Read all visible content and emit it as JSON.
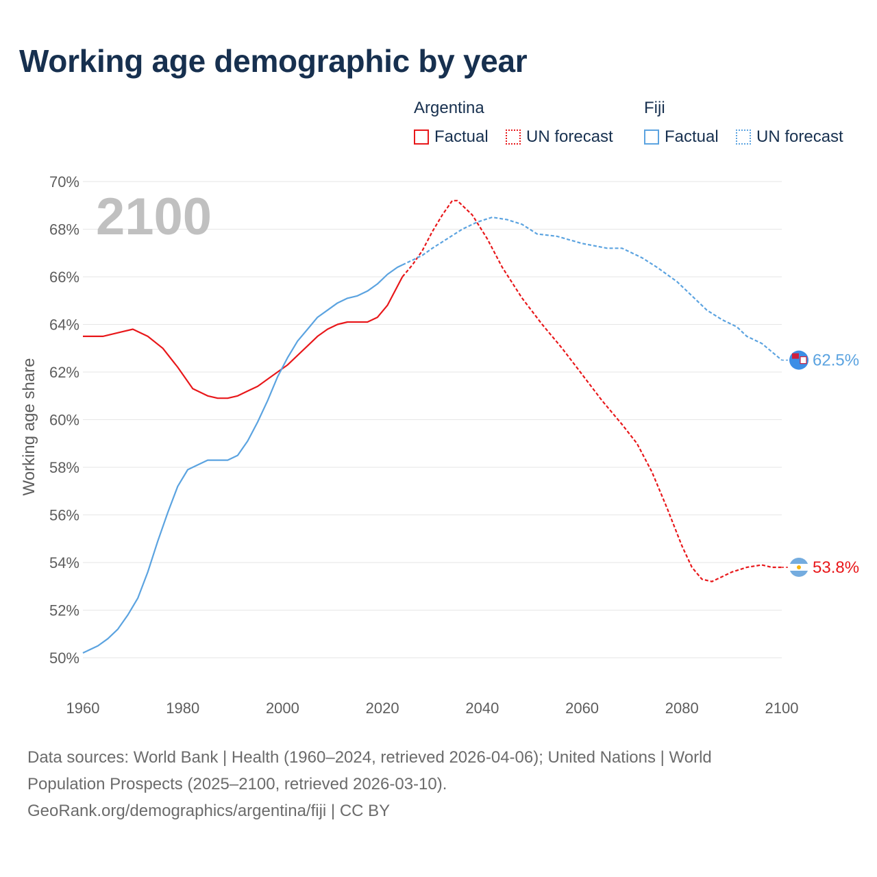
{
  "title": "Working age demographic by year",
  "legend": {
    "groups": [
      {
        "name": "Argentina",
        "color": "#e8171a",
        "factual_label": "Factual",
        "forecast_label": "UN forecast"
      },
      {
        "name": "Fiji",
        "color": "#5ba3e0",
        "factual_label": "Factual",
        "forecast_label": "UN forecast"
      }
    ]
  },
  "year_overlay": "2100",
  "chart_data": {
    "type": "line",
    "ylabel": "Working age share",
    "xlabel": "",
    "xlim": [
      1960,
      2100
    ],
    "ylim": [
      50,
      70
    ],
    "x_ticks": [
      1960,
      1980,
      2000,
      2020,
      2040,
      2060,
      2080,
      2100
    ],
    "x_tick_labels": [
      "1960",
      "1980",
      "2000",
      "2020",
      "2040",
      "2060",
      "2080",
      "2100"
    ],
    "y_ticks": [
      50,
      52,
      54,
      56,
      58,
      60,
      62,
      64,
      66,
      68,
      70
    ],
    "y_tick_labels": [
      "50%",
      "52%",
      "54%",
      "56%",
      "58%",
      "60%",
      "62%",
      "64%",
      "66%",
      "68%",
      "70%"
    ],
    "grid": true,
    "forecast_start": 2024,
    "series": [
      {
        "name": "Argentina",
        "color": "#e8171a",
        "end_label": "53.8%",
        "points": [
          [
            1960,
            63.5
          ],
          [
            1964,
            63.5
          ],
          [
            1966,
            63.6
          ],
          [
            1968,
            63.7
          ],
          [
            1970,
            63.8
          ],
          [
            1973,
            63.5
          ],
          [
            1976,
            63.0
          ],
          [
            1979,
            62.2
          ],
          [
            1982,
            61.3
          ],
          [
            1985,
            61.0
          ],
          [
            1987,
            60.9
          ],
          [
            1989,
            60.9
          ],
          [
            1991,
            61.0
          ],
          [
            1993,
            61.2
          ],
          [
            1995,
            61.4
          ],
          [
            1997,
            61.7
          ],
          [
            1999,
            62.0
          ],
          [
            2001,
            62.3
          ],
          [
            2003,
            62.7
          ],
          [
            2005,
            63.1
          ],
          [
            2007,
            63.5
          ],
          [
            2009,
            63.8
          ],
          [
            2011,
            64.0
          ],
          [
            2013,
            64.1
          ],
          [
            2017,
            64.1
          ],
          [
            2019,
            64.3
          ],
          [
            2021,
            64.8
          ],
          [
            2024,
            66.0
          ],
          [
            2026,
            66.5
          ],
          [
            2028,
            67.1
          ],
          [
            2030,
            67.9
          ],
          [
            2032,
            68.6
          ],
          [
            2034,
            69.2
          ],
          [
            2035,
            69.2
          ],
          [
            2038,
            68.6
          ],
          [
            2041,
            67.6
          ],
          [
            2044,
            66.4
          ],
          [
            2048,
            65.1
          ],
          [
            2052,
            64.0
          ],
          [
            2056,
            63.0
          ],
          [
            2060,
            61.9
          ],
          [
            2064,
            60.8
          ],
          [
            2068,
            59.8
          ],
          [
            2071,
            59.0
          ],
          [
            2074,
            57.8
          ],
          [
            2077,
            56.3
          ],
          [
            2080,
            54.7
          ],
          [
            2082,
            53.8
          ],
          [
            2084,
            53.3
          ],
          [
            2086,
            53.2
          ],
          [
            2088,
            53.4
          ],
          [
            2090,
            53.6
          ],
          [
            2093,
            53.8
          ],
          [
            2096,
            53.9
          ],
          [
            2098,
            53.8
          ],
          [
            2100,
            53.8
          ]
        ]
      },
      {
        "name": "Fiji",
        "color": "#5ba3e0",
        "end_label": "62.5%",
        "points": [
          [
            1960,
            50.2
          ],
          [
            1963,
            50.5
          ],
          [
            1965,
            50.8
          ],
          [
            1967,
            51.2
          ],
          [
            1969,
            51.8
          ],
          [
            1971,
            52.5
          ],
          [
            1973,
            53.6
          ],
          [
            1975,
            54.9
          ],
          [
            1977,
            56.1
          ],
          [
            1979,
            57.2
          ],
          [
            1981,
            57.9
          ],
          [
            1983,
            58.1
          ],
          [
            1985,
            58.3
          ],
          [
            1989,
            58.3
          ],
          [
            1991,
            58.5
          ],
          [
            1993,
            59.1
          ],
          [
            1995,
            59.9
          ],
          [
            1997,
            60.8
          ],
          [
            1999,
            61.8
          ],
          [
            2001,
            62.6
          ],
          [
            2003,
            63.3
          ],
          [
            2005,
            63.8
          ],
          [
            2007,
            64.3
          ],
          [
            2009,
            64.6
          ],
          [
            2011,
            64.9
          ],
          [
            2013,
            65.1
          ],
          [
            2015,
            65.2
          ],
          [
            2017,
            65.4
          ],
          [
            2019,
            65.7
          ],
          [
            2021,
            66.1
          ],
          [
            2023,
            66.4
          ],
          [
            2024,
            66.5
          ],
          [
            2026,
            66.7
          ],
          [
            2028,
            66.9
          ],
          [
            2030,
            67.2
          ],
          [
            2033,
            67.6
          ],
          [
            2036,
            68.0
          ],
          [
            2039,
            68.3
          ],
          [
            2042,
            68.5
          ],
          [
            2045,
            68.4
          ],
          [
            2048,
            68.2
          ],
          [
            2051,
            67.8
          ],
          [
            2055,
            67.7
          ],
          [
            2060,
            67.4
          ],
          [
            2065,
            67.2
          ],
          [
            2068,
            67.2
          ],
          [
            2072,
            66.8
          ],
          [
            2075,
            66.4
          ],
          [
            2079,
            65.8
          ],
          [
            2082,
            65.2
          ],
          [
            2085,
            64.6
          ],
          [
            2088,
            64.2
          ],
          [
            2091,
            63.9
          ],
          [
            2093,
            63.5
          ],
          [
            2096,
            63.2
          ],
          [
            2100,
            62.5
          ]
        ]
      }
    ]
  },
  "footer": {
    "line1": "Data sources: World Bank | Health (1960–2024, retrieved 2026-04-06); United Nations | World",
    "line2": "Population Prospects (2025–2100, retrieved 2026-03-10).",
    "line3": "GeoRank.org/demographics/argentina/fiji | CC BY"
  }
}
